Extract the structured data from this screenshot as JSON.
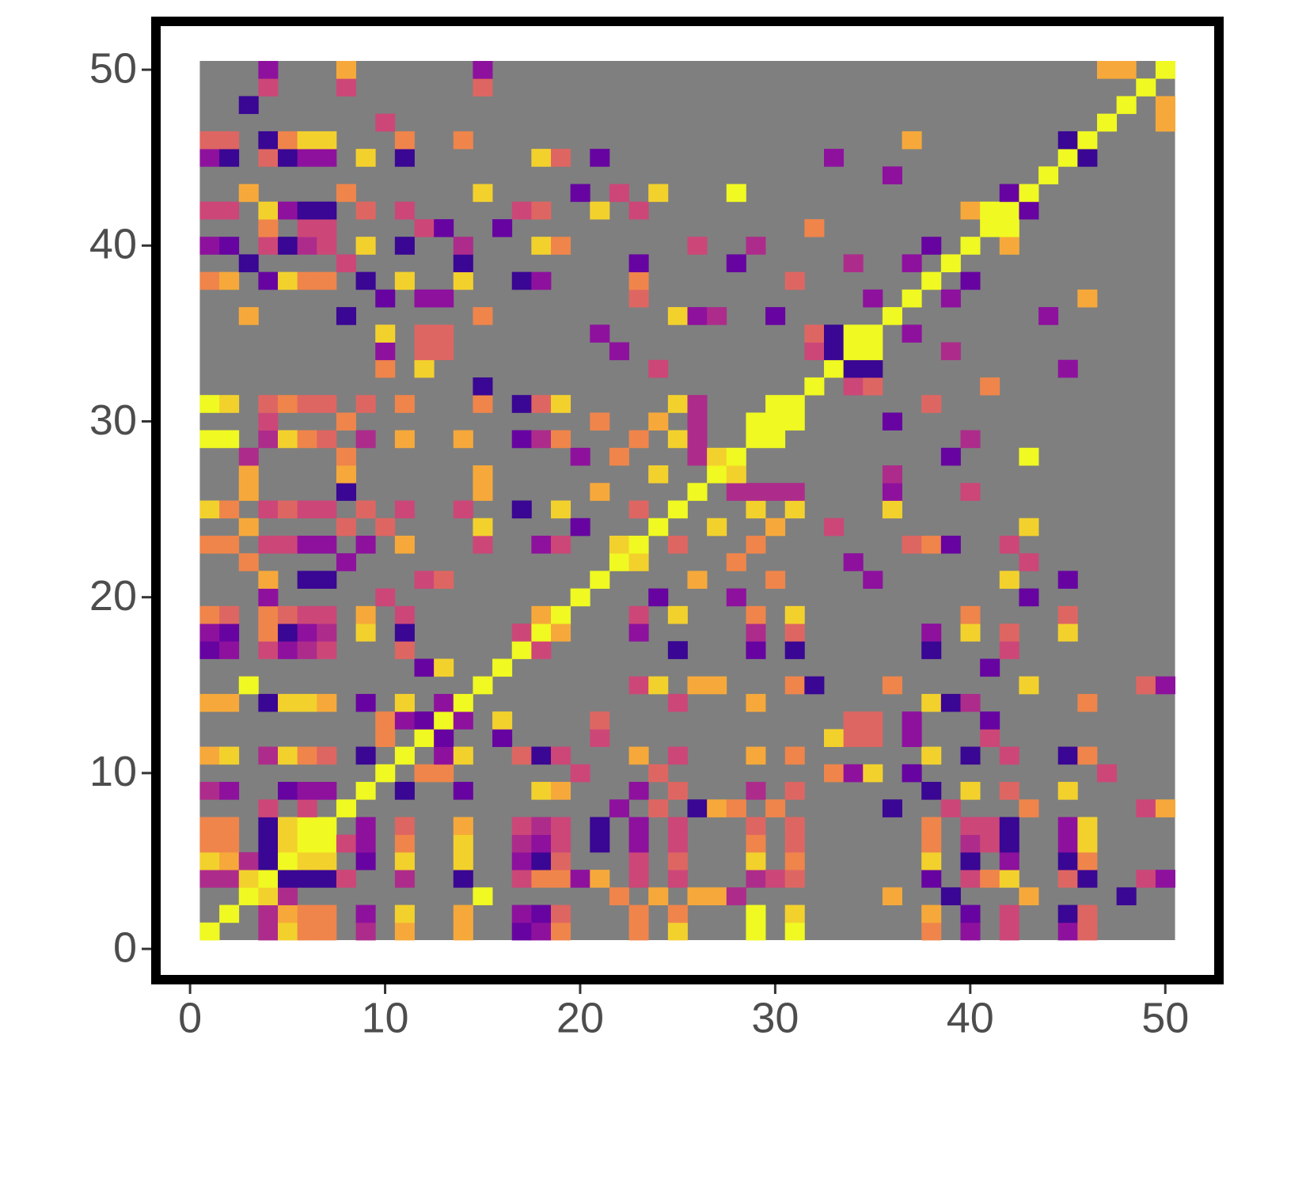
{
  "chart_data": {
    "type": "heatmap",
    "xlim": [
      -1.75,
      52.75
    ],
    "ylim": [
      -1.75,
      52.75
    ],
    "xticks": [
      0,
      10,
      20,
      30,
      40,
      50
    ],
    "yticks": [
      0,
      10,
      20,
      30,
      40,
      50
    ],
    "zlim": [
      0,
      10
    ],
    "colors": [
      "#0d0887",
      "#7e03a8",
      "#cc4778",
      "#f89540",
      "#f0f921"
    ],
    "na_color": "#7f7f7f",
    "symmetric": true,
    "z": [
      [
        10
      ],
      [
        null,
        10
      ],
      [
        null,
        null,
        10
      ],
      [
        4,
        4,
        9,
        10
      ],
      [
        9,
        8,
        4,
        1,
        10
      ],
      [
        7,
        7,
        null,
        1,
        9,
        10
      ],
      [
        7,
        7,
        null,
        1,
        9,
        10,
        10
      ],
      [
        null,
        null,
        null,
        5,
        null,
        5,
        null,
        10
      ],
      [
        4,
        3,
        null,
        null,
        2,
        3,
        3,
        null,
        10
      ],
      [
        null,
        null,
        null,
        null,
        null,
        null,
        null,
        null,
        null,
        10
      ],
      [
        8,
        9,
        null,
        4,
        9,
        7,
        6,
        null,
        1,
        null,
        10
      ],
      [
        null,
        null,
        null,
        null,
        null,
        null,
        null,
        null,
        null,
        7,
        null,
        10
      ],
      [
        null,
        null,
        null,
        null,
        null,
        null,
        null,
        null,
        null,
        7,
        3,
        2,
        10
      ],
      [
        8,
        8,
        null,
        1,
        9,
        9,
        8,
        null,
        2,
        null,
        9,
        null,
        3,
        10
      ],
      [
        null,
        null,
        10,
        null,
        null,
        null,
        null,
        null,
        null,
        null,
        null,
        null,
        null,
        null,
        10
      ],
      [
        null,
        null,
        null,
        null,
        null,
        null,
        null,
        null,
        null,
        null,
        null,
        2,
        9,
        null,
        null,
        10
      ],
      [
        2,
        3,
        null,
        5,
        3,
        4,
        5,
        null,
        null,
        null,
        6,
        null,
        null,
        null,
        null,
        null,
        10
      ],
      [
        3,
        2,
        null,
        7,
        1,
        3,
        4,
        null,
        9,
        null,
        1,
        null,
        null,
        null,
        null,
        null,
        5,
        10
      ],
      [
        7,
        6,
        null,
        7,
        6,
        5,
        5,
        null,
        8,
        null,
        5,
        null,
        null,
        null,
        null,
        null,
        null,
        8,
        10
      ],
      [
        null,
        null,
        null,
        3,
        null,
        null,
        null,
        null,
        null,
        5,
        null,
        null,
        null,
        null,
        null,
        null,
        null,
        null,
        null,
        10
      ],
      [
        null,
        null,
        null,
        8,
        null,
        1,
        1,
        null,
        null,
        null,
        null,
        5,
        6,
        null,
        null,
        null,
        null,
        null,
        null,
        null,
        10
      ],
      [
        null,
        null,
        7,
        null,
        null,
        null,
        null,
        3,
        null,
        null,
        null,
        null,
        null,
        null,
        null,
        null,
        null,
        null,
        null,
        null,
        null,
        10
      ],
      [
        7,
        7,
        null,
        5,
        5,
        3,
        3,
        null,
        3,
        null,
        8,
        null,
        null,
        null,
        5,
        null,
        null,
        3,
        5,
        null,
        null,
        9,
        10
      ],
      [
        null,
        null,
        8,
        null,
        null,
        null,
        null,
        6,
        null,
        6,
        null,
        null,
        null,
        null,
        9,
        null,
        null,
        null,
        null,
        2,
        null,
        null,
        null,
        10
      ],
      [
        9,
        7,
        null,
        5,
        6,
        5,
        5,
        null,
        6,
        null,
        5,
        null,
        null,
        5,
        null,
        null,
        1,
        null,
        9,
        null,
        null,
        null,
        6,
        null,
        10
      ],
      [
        null,
        null,
        8,
        null,
        null,
        null,
        null,
        1,
        null,
        null,
        null,
        null,
        null,
        null,
        8,
        null,
        null,
        null,
        null,
        null,
        8,
        null,
        null,
        null,
        null,
        10
      ],
      [
        null,
        null,
        8,
        null,
        null,
        null,
        null,
        8,
        null,
        null,
        null,
        null,
        null,
        null,
        8,
        null,
        null,
        null,
        null,
        null,
        null,
        null,
        null,
        9,
        null,
        null,
        10
      ],
      [
        null,
        null,
        4,
        null,
        null,
        null,
        null,
        7,
        null,
        null,
        null,
        null,
        null,
        null,
        null,
        null,
        null,
        null,
        null,
        3,
        null,
        7,
        null,
        null,
        null,
        4,
        9,
        10
      ],
      [
        10,
        10,
        null,
        4,
        9,
        7,
        6,
        null,
        4,
        null,
        8,
        null,
        null,
        8,
        null,
        null,
        2,
        4,
        7,
        null,
        null,
        null,
        7,
        null,
        9,
        4,
        null,
        null,
        10
      ],
      [
        null,
        null,
        null,
        5,
        null,
        null,
        null,
        7,
        null,
        null,
        null,
        null,
        null,
        null,
        null,
        null,
        null,
        null,
        null,
        null,
        7,
        null,
        null,
        8,
        null,
        4,
        null,
        null,
        10,
        10
      ],
      [
        10,
        9,
        null,
        6,
        7,
        6,
        6,
        null,
        6,
        null,
        7,
        null,
        null,
        null,
        7,
        null,
        1,
        6,
        9,
        null,
        null,
        null,
        null,
        null,
        9,
        4,
        null,
        null,
        null,
        10,
        10
      ],
      [
        null,
        null,
        null,
        null,
        null,
        null,
        null,
        null,
        null,
        null,
        null,
        null,
        null,
        null,
        1,
        null,
        null,
        null,
        null,
        null,
        null,
        null,
        null,
        null,
        null,
        null,
        null,
        null,
        null,
        null,
        null,
        10
      ],
      [
        null,
        null,
        null,
        null,
        null,
        null,
        null,
        null,
        null,
        7,
        null,
        9,
        null,
        null,
        null,
        null,
        null,
        null,
        null,
        null,
        null,
        null,
        null,
        5,
        null,
        null,
        null,
        null,
        null,
        null,
        null,
        null,
        10
      ],
      [
        null,
        null,
        null,
        null,
        null,
        null,
        null,
        null,
        null,
        3,
        null,
        6,
        6,
        null,
        null,
        null,
        null,
        null,
        null,
        null,
        null,
        3,
        null,
        null,
        null,
        null,
        null,
        null,
        null,
        null,
        null,
        5,
        1,
        10
      ],
      [
        null,
        null,
        null,
        null,
        null,
        null,
        null,
        null,
        null,
        9,
        null,
        6,
        6,
        null,
        null,
        null,
        null,
        null,
        null,
        null,
        3,
        null,
        null,
        null,
        null,
        null,
        null,
        null,
        null,
        null,
        null,
        6,
        1,
        10,
        10
      ],
      [
        null,
        null,
        8,
        null,
        null,
        null,
        null,
        1,
        null,
        null,
        null,
        null,
        null,
        null,
        7,
        null,
        null,
        null,
        null,
        null,
        null,
        null,
        null,
        null,
        9,
        3,
        4,
        null,
        null,
        2,
        null,
        null,
        null,
        null,
        null,
        10
      ],
      [
        null,
        null,
        null,
        null,
        null,
        null,
        null,
        null,
        null,
        2,
        null,
        3,
        3,
        null,
        null,
        null,
        null,
        null,
        null,
        null,
        null,
        null,
        6,
        null,
        null,
        null,
        null,
        null,
        null,
        null,
        null,
        null,
        null,
        null,
        3,
        null,
        10
      ],
      [
        7,
        8,
        null,
        2,
        9,
        7,
        7,
        null,
        1,
        null,
        9,
        null,
        null,
        9,
        null,
        null,
        1,
        3,
        null,
        null,
        null,
        null,
        7,
        null,
        null,
        null,
        null,
        null,
        null,
        null,
        6,
        null,
        null,
        null,
        null,
        null,
        null,
        10
      ],
      [
        null,
        null,
        1,
        null,
        null,
        null,
        null,
        5,
        null,
        null,
        null,
        null,
        null,
        1,
        null,
        null,
        null,
        null,
        null,
        null,
        null,
        null,
        2,
        null,
        null,
        null,
        null,
        2,
        null,
        null,
        null,
        null,
        null,
        4,
        null,
        null,
        3,
        null,
        10
      ],
      [
        3,
        2,
        null,
        5,
        1,
        4,
        5,
        null,
        9,
        null,
        1,
        null,
        null,
        4,
        null,
        null,
        null,
        9,
        7,
        null,
        null,
        null,
        null,
        null,
        null,
        5,
        null,
        null,
        4,
        null,
        null,
        null,
        null,
        null,
        null,
        null,
        null,
        2,
        null,
        10
      ],
      [
        null,
        null,
        null,
        7,
        null,
        5,
        5,
        null,
        null,
        null,
        null,
        5,
        2,
        null,
        null,
        2,
        null,
        null,
        null,
        null,
        null,
        null,
        null,
        null,
        null,
        null,
        null,
        null,
        null,
        null,
        null,
        7,
        null,
        null,
        null,
        null,
        null,
        null,
        null,
        null,
        10
      ],
      [
        5,
        5,
        null,
        9,
        3,
        1,
        1,
        null,
        6,
        null,
        5,
        null,
        null,
        null,
        null,
        null,
        5,
        6,
        null,
        null,
        9,
        null,
        5,
        null,
        null,
        null,
        null,
        null,
        null,
        null,
        null,
        null,
        null,
        null,
        null,
        null,
        null,
        null,
        null,
        8,
        10,
        10
      ],
      [
        null,
        null,
        8,
        null,
        null,
        null,
        null,
        7,
        null,
        null,
        null,
        null,
        null,
        null,
        9,
        null,
        null,
        null,
        null,
        2,
        null,
        5,
        null,
        9,
        null,
        null,
        null,
        10,
        null,
        null,
        null,
        null,
        null,
        null,
        null,
        null,
        null,
        null,
        null,
        null,
        null,
        2,
        10
      ],
      [
        null,
        null,
        null,
        null,
        null,
        null,
        null,
        null,
        null,
        null,
        null,
        null,
        null,
        null,
        null,
        null,
        null,
        null,
        null,
        null,
        null,
        null,
        null,
        null,
        null,
        null,
        null,
        null,
        null,
        null,
        null,
        null,
        null,
        null,
        null,
        3,
        null,
        null,
        null,
        null,
        null,
        null,
        null,
        10
      ],
      [
        3,
        1,
        null,
        6,
        1,
        3,
        3,
        null,
        9,
        null,
        1,
        null,
        null,
        null,
        null,
        null,
        null,
        9,
        6,
        null,
        2,
        null,
        null,
        null,
        null,
        null,
        null,
        null,
        null,
        null,
        null,
        null,
        3,
        null,
        null,
        null,
        null,
        null,
        null,
        null,
        null,
        null,
        null,
        null,
        10
      ],
      [
        6,
        6,
        null,
        1,
        7,
        9,
        9,
        null,
        null,
        null,
        7,
        null,
        null,
        7,
        null,
        null,
        null,
        null,
        null,
        null,
        null,
        null,
        null,
        null,
        null,
        null,
        null,
        null,
        null,
        null,
        null,
        null,
        null,
        null,
        null,
        null,
        8,
        null,
        null,
        null,
        null,
        null,
        null,
        null,
        1,
        10
      ],
      [
        null,
        null,
        null,
        null,
        null,
        null,
        null,
        null,
        null,
        5,
        null,
        null,
        null,
        null,
        null,
        null,
        null,
        null,
        null,
        null,
        null,
        null,
        null,
        null,
        null,
        null,
        null,
        null,
        null,
        null,
        null,
        null,
        null,
        null,
        null,
        null,
        null,
        null,
        null,
        null,
        null,
        null,
        null,
        null,
        null,
        null,
        10
      ],
      [
        null,
        null,
        1,
        null,
        null,
        null,
        null,
        null,
        null,
        null,
        null,
        null,
        null,
        null,
        null,
        null,
        null,
        null,
        null,
        null,
        null,
        null,
        null,
        null,
        null,
        null,
        null,
        null,
        null,
        null,
        null,
        null,
        null,
        null,
        null,
        null,
        null,
        null,
        null,
        null,
        null,
        null,
        null,
        null,
        null,
        null,
        null,
        10
      ],
      [
        null,
        null,
        null,
        5,
        null,
        null,
        null,
        5,
        null,
        null,
        null,
        null,
        null,
        null,
        6,
        null,
        null,
        null,
        null,
        null,
        null,
        null,
        null,
        null,
        null,
        null,
        null,
        null,
        null,
        null,
        null,
        null,
        null,
        null,
        null,
        null,
        null,
        null,
        null,
        null,
        null,
        null,
        null,
        null,
        null,
        null,
        null,
        null,
        10
      ],
      [
        null,
        null,
        null,
        3,
        null,
        null,
        null,
        8,
        null,
        null,
        null,
        null,
        null,
        null,
        3,
        null,
        null,
        null,
        null,
        null,
        null,
        null,
        null,
        null,
        null,
        null,
        null,
        null,
        null,
        null,
        null,
        null,
        null,
        null,
        null,
        null,
        null,
        null,
        null,
        null,
        null,
        null,
        null,
        null,
        null,
        null,
        8,
        8,
        null,
        10
      ]
    ]
  }
}
